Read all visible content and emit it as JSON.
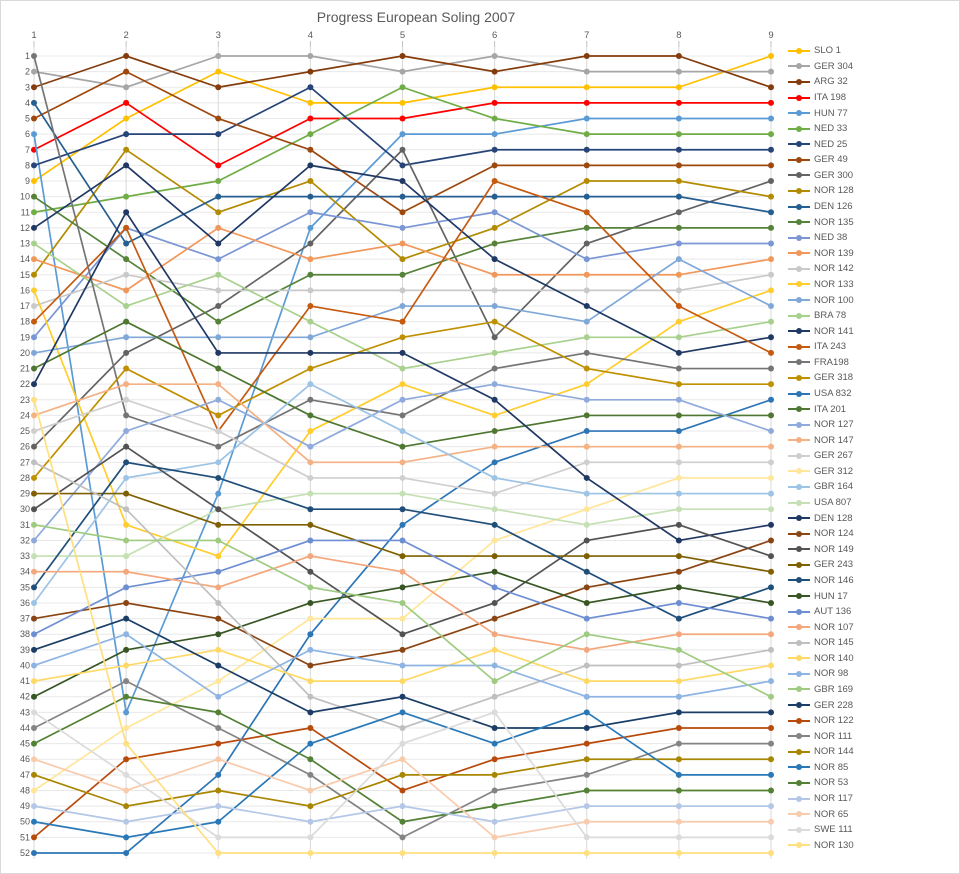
{
  "title": "Progress European Soling 2007",
  "chart_data": {
    "type": "line",
    "subtype": "bump-chart",
    "title": "Progress European Soling 2007",
    "xlabel": "",
    "ylabel": "",
    "x_ticks": [
      1,
      2,
      3,
      4,
      5,
      6,
      7,
      8,
      9
    ],
    "ylim": [
      1,
      52
    ],
    "y_axis_inverted_rank": true,
    "grid": "horizontal-and-vertical",
    "legend_position": "right",
    "axis_text_color": "#595959",
    "series": [
      {
        "name": "SLO 1",
        "color": "#FFC000",
        "positions": [
          9,
          5,
          2,
          4,
          4,
          3,
          3,
          3,
          1
        ]
      },
      {
        "name": "GER 304",
        "color": "#A6A6A6",
        "positions": [
          2,
          3,
          1,
          1,
          2,
          1,
          2,
          2,
          2
        ]
      },
      {
        "name": "ARG 32",
        "color": "#843C0C",
        "positions": [
          3,
          1,
          3,
          2,
          1,
          2,
          1,
          1,
          3
        ]
      },
      {
        "name": "ITA 198",
        "color": "#FF0000",
        "positions": [
          7,
          4,
          8,
          5,
          5,
          4,
          4,
          4,
          4
        ]
      },
      {
        "name": "HUN 77",
        "color": "#5B9BD5",
        "positions": [
          6,
          43,
          29,
          12,
          6,
          6,
          5,
          5,
          5
        ]
      },
      {
        "name": "NED 33",
        "color": "#70AD47",
        "positions": [
          11,
          10,
          9,
          6,
          3,
          5,
          6,
          6,
          6
        ]
      },
      {
        "name": "NED 25",
        "color": "#264478",
        "positions": [
          8,
          6,
          6,
          3,
          8,
          7,
          7,
          7,
          7
        ]
      },
      {
        "name": "GER 49",
        "color": "#9E480E",
        "positions": [
          5,
          2,
          5,
          7,
          11,
          8,
          8,
          8,
          8
        ]
      },
      {
        "name": "GER 300",
        "color": "#636363",
        "positions": [
          26,
          20,
          17,
          13,
          7,
          19,
          13,
          11,
          9
        ]
      },
      {
        "name": "NOR 128",
        "color": "#B38B00",
        "positions": [
          15,
          7,
          11,
          9,
          14,
          12,
          9,
          9,
          10
        ]
      },
      {
        "name": "DEN 126",
        "color": "#255E91",
        "positions": [
          4,
          13,
          10,
          10,
          10,
          10,
          10,
          10,
          11
        ]
      },
      {
        "name": "NOR 135",
        "color": "#568339",
        "positions": [
          10,
          14,
          18,
          15,
          15,
          13,
          12,
          12,
          12
        ]
      },
      {
        "name": "NED 38",
        "color": "#7A96D5",
        "positions": [
          19,
          12,
          14,
          11,
          12,
          11,
          14,
          13,
          13
        ]
      },
      {
        "name": "NOR 139",
        "color": "#F1975A",
        "positions": [
          14,
          16,
          12,
          14,
          13,
          15,
          15,
          15,
          14
        ]
      },
      {
        "name": "NOR 142",
        "color": "#C9C9C9",
        "positions": [
          17,
          15,
          16,
          16,
          16,
          16,
          16,
          16,
          15
        ]
      },
      {
        "name": "NOR 133",
        "color": "#FFCD2E",
        "positions": [
          16,
          31,
          33,
          25,
          22,
          24,
          22,
          18,
          16
        ]
      },
      {
        "name": "NOR 100",
        "color": "#7FA8D9",
        "positions": [
          20,
          19,
          19,
          19,
          17,
          17,
          18,
          14,
          17
        ]
      },
      {
        "name": "BRA 78",
        "color": "#A9D18E",
        "positions": [
          13,
          17,
          15,
          18,
          21,
          20,
          19,
          19,
          18
        ]
      },
      {
        "name": "NOR 141",
        "color": "#1F3864",
        "positions": [
          12,
          8,
          13,
          8,
          9,
          14,
          17,
          20,
          19
        ]
      },
      {
        "name": "ITA 243",
        "color": "#C55A11",
        "positions": [
          18,
          12,
          25,
          17,
          18,
          9,
          11,
          17,
          20
        ]
      },
      {
        "name": "FRA198",
        "color": "#757575",
        "positions": [
          1,
          24,
          26,
          23,
          24,
          21,
          20,
          21,
          21
        ]
      },
      {
        "name": "GER 318",
        "color": "#BF9000",
        "positions": [
          28,
          21,
          24,
          21,
          19,
          18,
          21,
          22,
          22
        ]
      },
      {
        "name": "USA 832",
        "color": "#2E75B6",
        "positions": [
          52,
          52,
          47,
          38,
          31,
          27,
          25,
          25,
          23
        ]
      },
      {
        "name": "ITA 201",
        "color": "#4E7731",
        "positions": [
          21,
          18,
          21,
          24,
          26,
          25,
          24,
          24,
          24
        ]
      },
      {
        "name": "NOR 127",
        "color": "#8FAADC",
        "positions": [
          32,
          25,
          23,
          26,
          23,
          22,
          23,
          23,
          25
        ]
      },
      {
        "name": "NOR 147",
        "color": "#F4B183",
        "positions": [
          24,
          22,
          22,
          27,
          27,
          26,
          26,
          26,
          26
        ]
      },
      {
        "name": "GER 267",
        "color": "#D0CECE",
        "positions": [
          25,
          23,
          25,
          28,
          28,
          29,
          27,
          27,
          27
        ]
      },
      {
        "name": "GER 312",
        "color": "#FFE699",
        "positions": [
          48,
          44,
          41,
          37,
          37,
          32,
          30,
          28,
          28
        ]
      },
      {
        "name": "GBR 164",
        "color": "#9DC3E6",
        "positions": [
          36,
          28,
          27,
          22,
          25,
          28,
          29,
          29,
          29
        ]
      },
      {
        "name": "USA 807",
        "color": "#C5E0B4",
        "positions": [
          33,
          33,
          30,
          29,
          29,
          30,
          31,
          30,
          30
        ]
      },
      {
        "name": "DEN 128",
        "color": "#203864",
        "positions": [
          22,
          11,
          20,
          20,
          20,
          23,
          28,
          32,
          31
        ]
      },
      {
        "name": "NOR 124",
        "color": "#8B4513",
        "positions": [
          37,
          36,
          37,
          40,
          39,
          37,
          35,
          34,
          32
        ]
      },
      {
        "name": "NOR 149",
        "color": "#525252",
        "positions": [
          30,
          26,
          30,
          34,
          38,
          36,
          32,
          31,
          33
        ]
      },
      {
        "name": "GER 243",
        "color": "#7F6000",
        "positions": [
          29,
          29,
          31,
          31,
          33,
          33,
          33,
          33,
          34
        ]
      },
      {
        "name": "NOR 146",
        "color": "#1F4E79",
        "positions": [
          35,
          27,
          28,
          30,
          30,
          31,
          34,
          37,
          35
        ]
      },
      {
        "name": "HUN 17",
        "color": "#375623",
        "positions": [
          42,
          39,
          38,
          36,
          35,
          34,
          36,
          35,
          36
        ]
      },
      {
        "name": "AUT 136",
        "color": "#6D8ED3",
        "positions": [
          38,
          35,
          34,
          32,
          32,
          35,
          37,
          36,
          37
        ]
      },
      {
        "name": "NOR 107",
        "color": "#F4A77C",
        "positions": [
          34,
          34,
          35,
          33,
          34,
          38,
          39,
          38,
          38
        ]
      },
      {
        "name": "NOR 145",
        "color": "#BFBFBF",
        "positions": [
          27,
          30,
          36,
          42,
          44,
          42,
          40,
          40,
          39
        ]
      },
      {
        "name": "NOR 140",
        "color": "#FFD966",
        "positions": [
          41,
          40,
          39,
          41,
          41,
          39,
          41,
          41,
          40
        ]
      },
      {
        "name": "NOR 98",
        "color": "#8EB4E3",
        "positions": [
          40,
          38,
          42,
          39,
          40,
          40,
          42,
          42,
          41
        ]
      },
      {
        "name": "GBR 169",
        "color": "#9FCB81",
        "positions": [
          31,
          32,
          32,
          35,
          36,
          41,
          38,
          39,
          42
        ]
      },
      {
        "name": "GER 228",
        "color": "#1A3E66",
        "positions": [
          39,
          37,
          40,
          43,
          42,
          44,
          44,
          43,
          43
        ]
      },
      {
        "name": "NOR 122",
        "color": "#B84A0C",
        "positions": [
          51,
          46,
          45,
          44,
          48,
          46,
          45,
          44,
          44
        ]
      },
      {
        "name": "NOR 111",
        "color": "#848484",
        "positions": [
          44,
          41,
          44,
          47,
          51,
          48,
          47,
          45,
          45
        ]
      },
      {
        "name": "NOR 144",
        "color": "#A98600",
        "positions": [
          47,
          49,
          48,
          49,
          47,
          47,
          46,
          46,
          46
        ]
      },
      {
        "name": "NOR 85",
        "color": "#2979B8",
        "positions": [
          50,
          51,
          50,
          45,
          43,
          45,
          43,
          47,
          47
        ]
      },
      {
        "name": "NOR 53",
        "color": "#538135",
        "positions": [
          45,
          42,
          43,
          46,
          50,
          49,
          48,
          48,
          48
        ]
      },
      {
        "name": "NOR 117",
        "color": "#B4C7E7",
        "positions": [
          49,
          50,
          49,
          50,
          49,
          50,
          49,
          49,
          49
        ]
      },
      {
        "name": "NOR 65",
        "color": "#F8CBAD",
        "positions": [
          46,
          48,
          46,
          48,
          46,
          51,
          50,
          50,
          50
        ]
      },
      {
        "name": "SWE 111",
        "color": "#DBDBDB",
        "positions": [
          43,
          47,
          51,
          51,
          45,
          43,
          51,
          51,
          51
        ]
      },
      {
        "name": "NOR 130",
        "color": "#FFDF80",
        "positions": [
          23,
          45,
          52,
          52,
          52,
          52,
          52,
          52,
          52
        ]
      }
    ]
  },
  "style_colors": {
    "background": "#FFFFFF",
    "border": "#D9D9D9",
    "title_text": "#595959",
    "axis_text": "#595959",
    "gridline_horizontal": "#E8E8E8",
    "gridline_vertical": "#D9D9D9",
    "axis_tick": "#BFBFBF"
  }
}
